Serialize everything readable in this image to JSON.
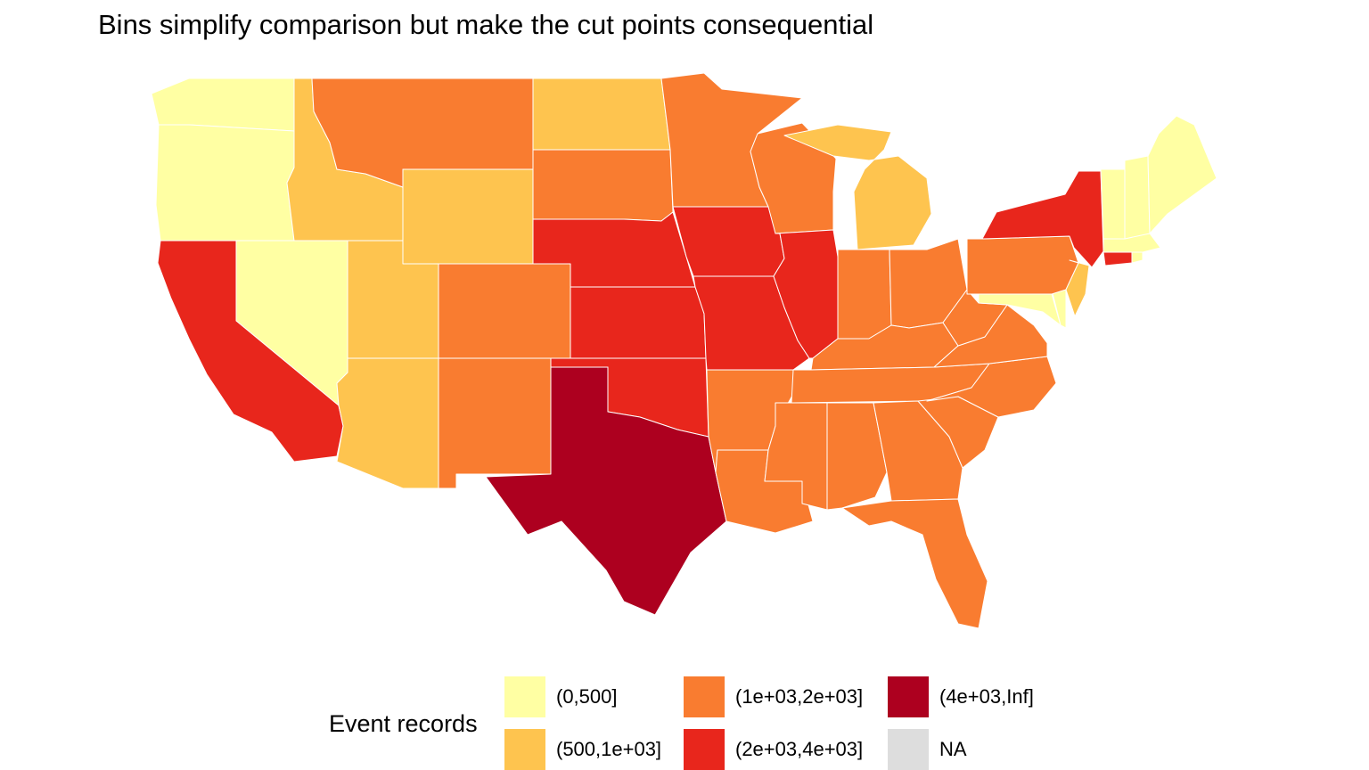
{
  "title": "Bins simplify comparison but make the cut points consequential",
  "legend": {
    "title": "Event records",
    "items": [
      {
        "label": "(0,500]",
        "color": "#FFFFA3"
      },
      {
        "label": "(500,1e+03]",
        "color": "#FEC44F"
      },
      {
        "label": "(1e+03,2e+03]",
        "color": "#F97C30"
      },
      {
        "label": "(2e+03,4e+03]",
        "color": "#E8261C"
      },
      {
        "label": "(4e+03,Inf]",
        "color": "#AD001F"
      },
      {
        "label": "NA",
        "color": "#DDDDDD"
      }
    ]
  },
  "states": [
    {
      "id": "WA",
      "bin": 0
    },
    {
      "id": "OR",
      "bin": 0
    },
    {
      "id": "NV",
      "bin": 0
    },
    {
      "id": "CA",
      "bin": 3
    },
    {
      "id": "ID",
      "bin": 1
    },
    {
      "id": "MT",
      "bin": 2
    },
    {
      "id": "WY",
      "bin": 1
    },
    {
      "id": "UT",
      "bin": 1
    },
    {
      "id": "AZ",
      "bin": 1
    },
    {
      "id": "CO",
      "bin": 2
    },
    {
      "id": "NM",
      "bin": 2
    },
    {
      "id": "ND",
      "bin": 1
    },
    {
      "id": "SD",
      "bin": 2
    },
    {
      "id": "NE",
      "bin": 3
    },
    {
      "id": "KS",
      "bin": 3
    },
    {
      "id": "OK",
      "bin": 3
    },
    {
      "id": "TX",
      "bin": 4
    },
    {
      "id": "MN",
      "bin": 2
    },
    {
      "id": "IA",
      "bin": 3
    },
    {
      "id": "MO",
      "bin": 3
    },
    {
      "id": "AR",
      "bin": 2
    },
    {
      "id": "LA",
      "bin": 2
    },
    {
      "id": "WI",
      "bin": 2
    },
    {
      "id": "IL",
      "bin": 3
    },
    {
      "id": "MI",
      "bin": 1
    },
    {
      "id": "IN",
      "bin": 2
    },
    {
      "id": "OH",
      "bin": 2
    },
    {
      "id": "KY",
      "bin": 2
    },
    {
      "id": "TN",
      "bin": 2
    },
    {
      "id": "MS",
      "bin": 2
    },
    {
      "id": "AL",
      "bin": 2
    },
    {
      "id": "GA",
      "bin": 2
    },
    {
      "id": "FL",
      "bin": 2
    },
    {
      "id": "SC",
      "bin": 2
    },
    {
      "id": "NC",
      "bin": 2
    },
    {
      "id": "VA",
      "bin": 2
    },
    {
      "id": "WV",
      "bin": 2
    },
    {
      "id": "PA",
      "bin": 2
    },
    {
      "id": "NY",
      "bin": 3
    },
    {
      "id": "NJ",
      "bin": 1
    },
    {
      "id": "MD",
      "bin": 0
    },
    {
      "id": "DE",
      "bin": 0
    },
    {
      "id": "CT",
      "bin": 3
    },
    {
      "id": "MA",
      "bin": 0
    },
    {
      "id": "RI",
      "bin": 0
    },
    {
      "id": "VT",
      "bin": 0
    },
    {
      "id": "NH",
      "bin": 0
    },
    {
      "id": "ME",
      "bin": 0
    }
  ]
}
